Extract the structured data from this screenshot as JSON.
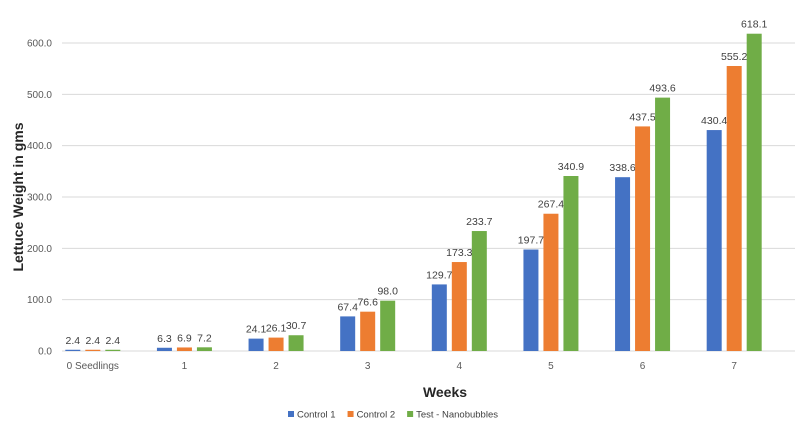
{
  "chart_data": {
    "type": "bar",
    "title": "",
    "xlabel": "Weeks",
    "ylabel": "Lettuce Weight in gms",
    "categories": [
      "0 Seedlings",
      "1",
      "2",
      "3",
      "4",
      "5",
      "6",
      "7"
    ],
    "series": [
      {
        "name": "Control 1",
        "color": "#4472C4",
        "values": [
          2.4,
          6.3,
          24.1,
          67.4,
          129.7,
          197.7,
          338.6,
          430.4
        ]
      },
      {
        "name": "Control 2",
        "color": "#ED7D31",
        "values": [
          2.4,
          6.9,
          26.1,
          76.6,
          173.3,
          267.4,
          437.5,
          555.2
        ]
      },
      {
        "name": "Test - Nanobubbles",
        "color": "#70AD47",
        "values": [
          2.4,
          7.2,
          30.7,
          98.0,
          233.7,
          340.9,
          493.6,
          618.1
        ]
      }
    ],
    "ylim": [
      0,
      600
    ],
    "yticks": [
      "0.0",
      "100.0",
      "200.0",
      "300.0",
      "400.0",
      "500.0",
      "600.0"
    ],
    "grid": true,
    "legend": "bottom",
    "data_labels": true
  }
}
